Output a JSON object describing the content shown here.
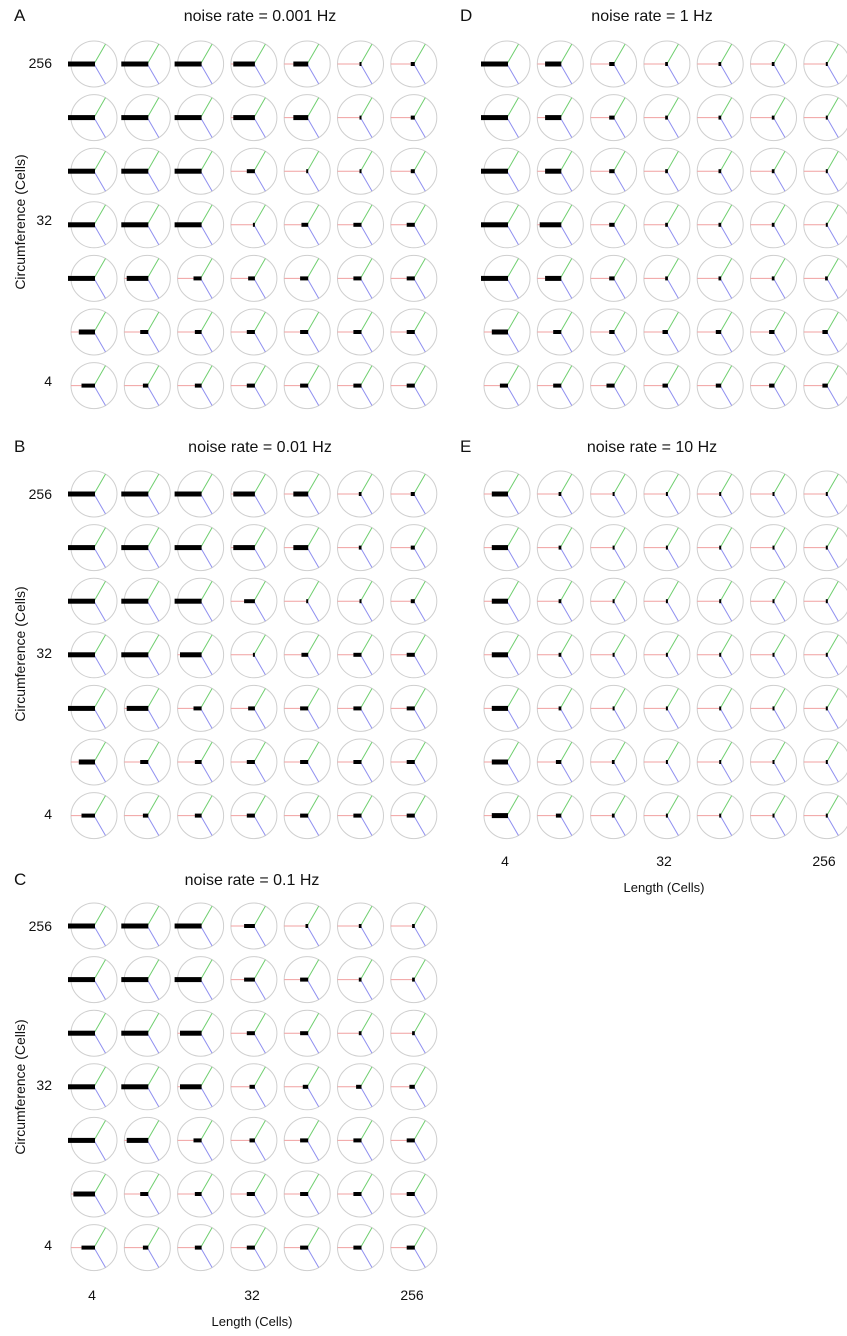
{
  "figure": {
    "ylabel": "Circumference (Cells)",
    "xlabel": "Length (Cells)",
    "y_ticks": [
      "256",
      "32",
      "4"
    ],
    "x_ticks": [
      "4",
      "32",
      "256"
    ]
  },
  "colors": {
    "circle": "#cfcfcf",
    "axis_a": "#6fcf6f",
    "axis_b": "#8f8ff0",
    "axis_c": "#f0a0a0",
    "marker": "#000000"
  },
  "chart_data": [
    {
      "type": "heatmap",
      "letter": "A",
      "title": "noise rate = 0.001 Hz",
      "marker_length_grid_top_to_bottom": [
        [
          1.0,
          1.0,
          1.0,
          0.8,
          0.55,
          0.05,
          0.15
        ],
        [
          1.0,
          1.0,
          1.0,
          0.8,
          0.55,
          0.05,
          0.15
        ],
        [
          1.0,
          1.0,
          1.0,
          0.3,
          0.05,
          0.05,
          0.15
        ],
        [
          1.0,
          1.0,
          1.0,
          0.05,
          0.25,
          0.3,
          0.3
        ],
        [
          1.0,
          0.8,
          0.3,
          0.25,
          0.3,
          0.3,
          0.3
        ],
        [
          0.6,
          0.3,
          0.25,
          0.3,
          0.3,
          0.3,
          0.3
        ],
        [
          0.5,
          0.2,
          0.25,
          0.3,
          0.3,
          0.3,
          0.3
        ]
      ]
    },
    {
      "type": "heatmap",
      "letter": "B",
      "title": "noise rate = 0.01 Hz",
      "marker_length_grid_top_to_bottom": [
        [
          1.0,
          1.0,
          1.0,
          0.8,
          0.55,
          0.1,
          0.15
        ],
        [
          1.0,
          1.0,
          1.0,
          0.8,
          0.55,
          0.1,
          0.15
        ],
        [
          1.0,
          1.0,
          1.0,
          0.4,
          0.05,
          0.05,
          0.15
        ],
        [
          1.0,
          1.0,
          0.8,
          0.05,
          0.25,
          0.3,
          0.3
        ],
        [
          1.0,
          0.8,
          0.3,
          0.25,
          0.3,
          0.3,
          0.3
        ],
        [
          0.6,
          0.3,
          0.25,
          0.3,
          0.3,
          0.3,
          0.3
        ],
        [
          0.5,
          0.2,
          0.25,
          0.3,
          0.3,
          0.3,
          0.3
        ]
      ]
    },
    {
      "type": "heatmap",
      "letter": "C",
      "title": "noise rate = 0.1 Hz",
      "marker_length_grid_top_to_bottom": [
        [
          1.0,
          1.0,
          1.0,
          0.4,
          0.1,
          0.1,
          0.1
        ],
        [
          1.0,
          1.0,
          1.0,
          0.4,
          0.3,
          0.1,
          0.1
        ],
        [
          1.0,
          1.0,
          0.8,
          0.3,
          0.3,
          0.1,
          0.1
        ],
        [
          1.0,
          1.0,
          0.8,
          0.2,
          0.2,
          0.2,
          0.2
        ],
        [
          1.0,
          0.8,
          0.3,
          0.2,
          0.3,
          0.3,
          0.3
        ],
        [
          0.8,
          0.3,
          0.25,
          0.3,
          0.3,
          0.3,
          0.3
        ],
        [
          0.5,
          0.2,
          0.25,
          0.3,
          0.3,
          0.3,
          0.3
        ]
      ]
    },
    {
      "type": "heatmap",
      "letter": "D",
      "title": "noise rate = 1 Hz",
      "marker_length_grid_top_to_bottom": [
        [
          1.0,
          0.6,
          0.2,
          0.1,
          0.1,
          0.1,
          0.05
        ],
        [
          1.0,
          0.6,
          0.2,
          0.1,
          0.1,
          0.1,
          0.05
        ],
        [
          1.0,
          0.6,
          0.2,
          0.1,
          0.1,
          0.1,
          0.05
        ],
        [
          1.0,
          0.8,
          0.2,
          0.1,
          0.1,
          0.1,
          0.05
        ],
        [
          1.0,
          0.6,
          0.2,
          0.1,
          0.1,
          0.1,
          0.1
        ],
        [
          0.6,
          0.3,
          0.2,
          0.2,
          0.2,
          0.2,
          0.2
        ],
        [
          0.3,
          0.3,
          0.3,
          0.2,
          0.2,
          0.2,
          0.2
        ]
      ]
    },
    {
      "type": "heatmap",
      "letter": "E",
      "title": "noise rate = 10 Hz",
      "marker_length_grid_top_to_bottom": [
        [
          0.6,
          0.1,
          0.05,
          0.05,
          0.05,
          0.05,
          0.05
        ],
        [
          0.6,
          0.1,
          0.05,
          0.05,
          0.05,
          0.05,
          0.05
        ],
        [
          0.6,
          0.1,
          0.05,
          0.05,
          0.05,
          0.05,
          0.05
        ],
        [
          0.6,
          0.1,
          0.05,
          0.05,
          0.05,
          0.05,
          0.05
        ],
        [
          0.6,
          0.1,
          0.05,
          0.05,
          0.05,
          0.05,
          0.05
        ],
        [
          0.6,
          0.2,
          0.1,
          0.05,
          0.05,
          0.05,
          0.05
        ],
        [
          0.6,
          0.2,
          0.1,
          0.05,
          0.05,
          0.05,
          0.05
        ]
      ]
    }
  ]
}
